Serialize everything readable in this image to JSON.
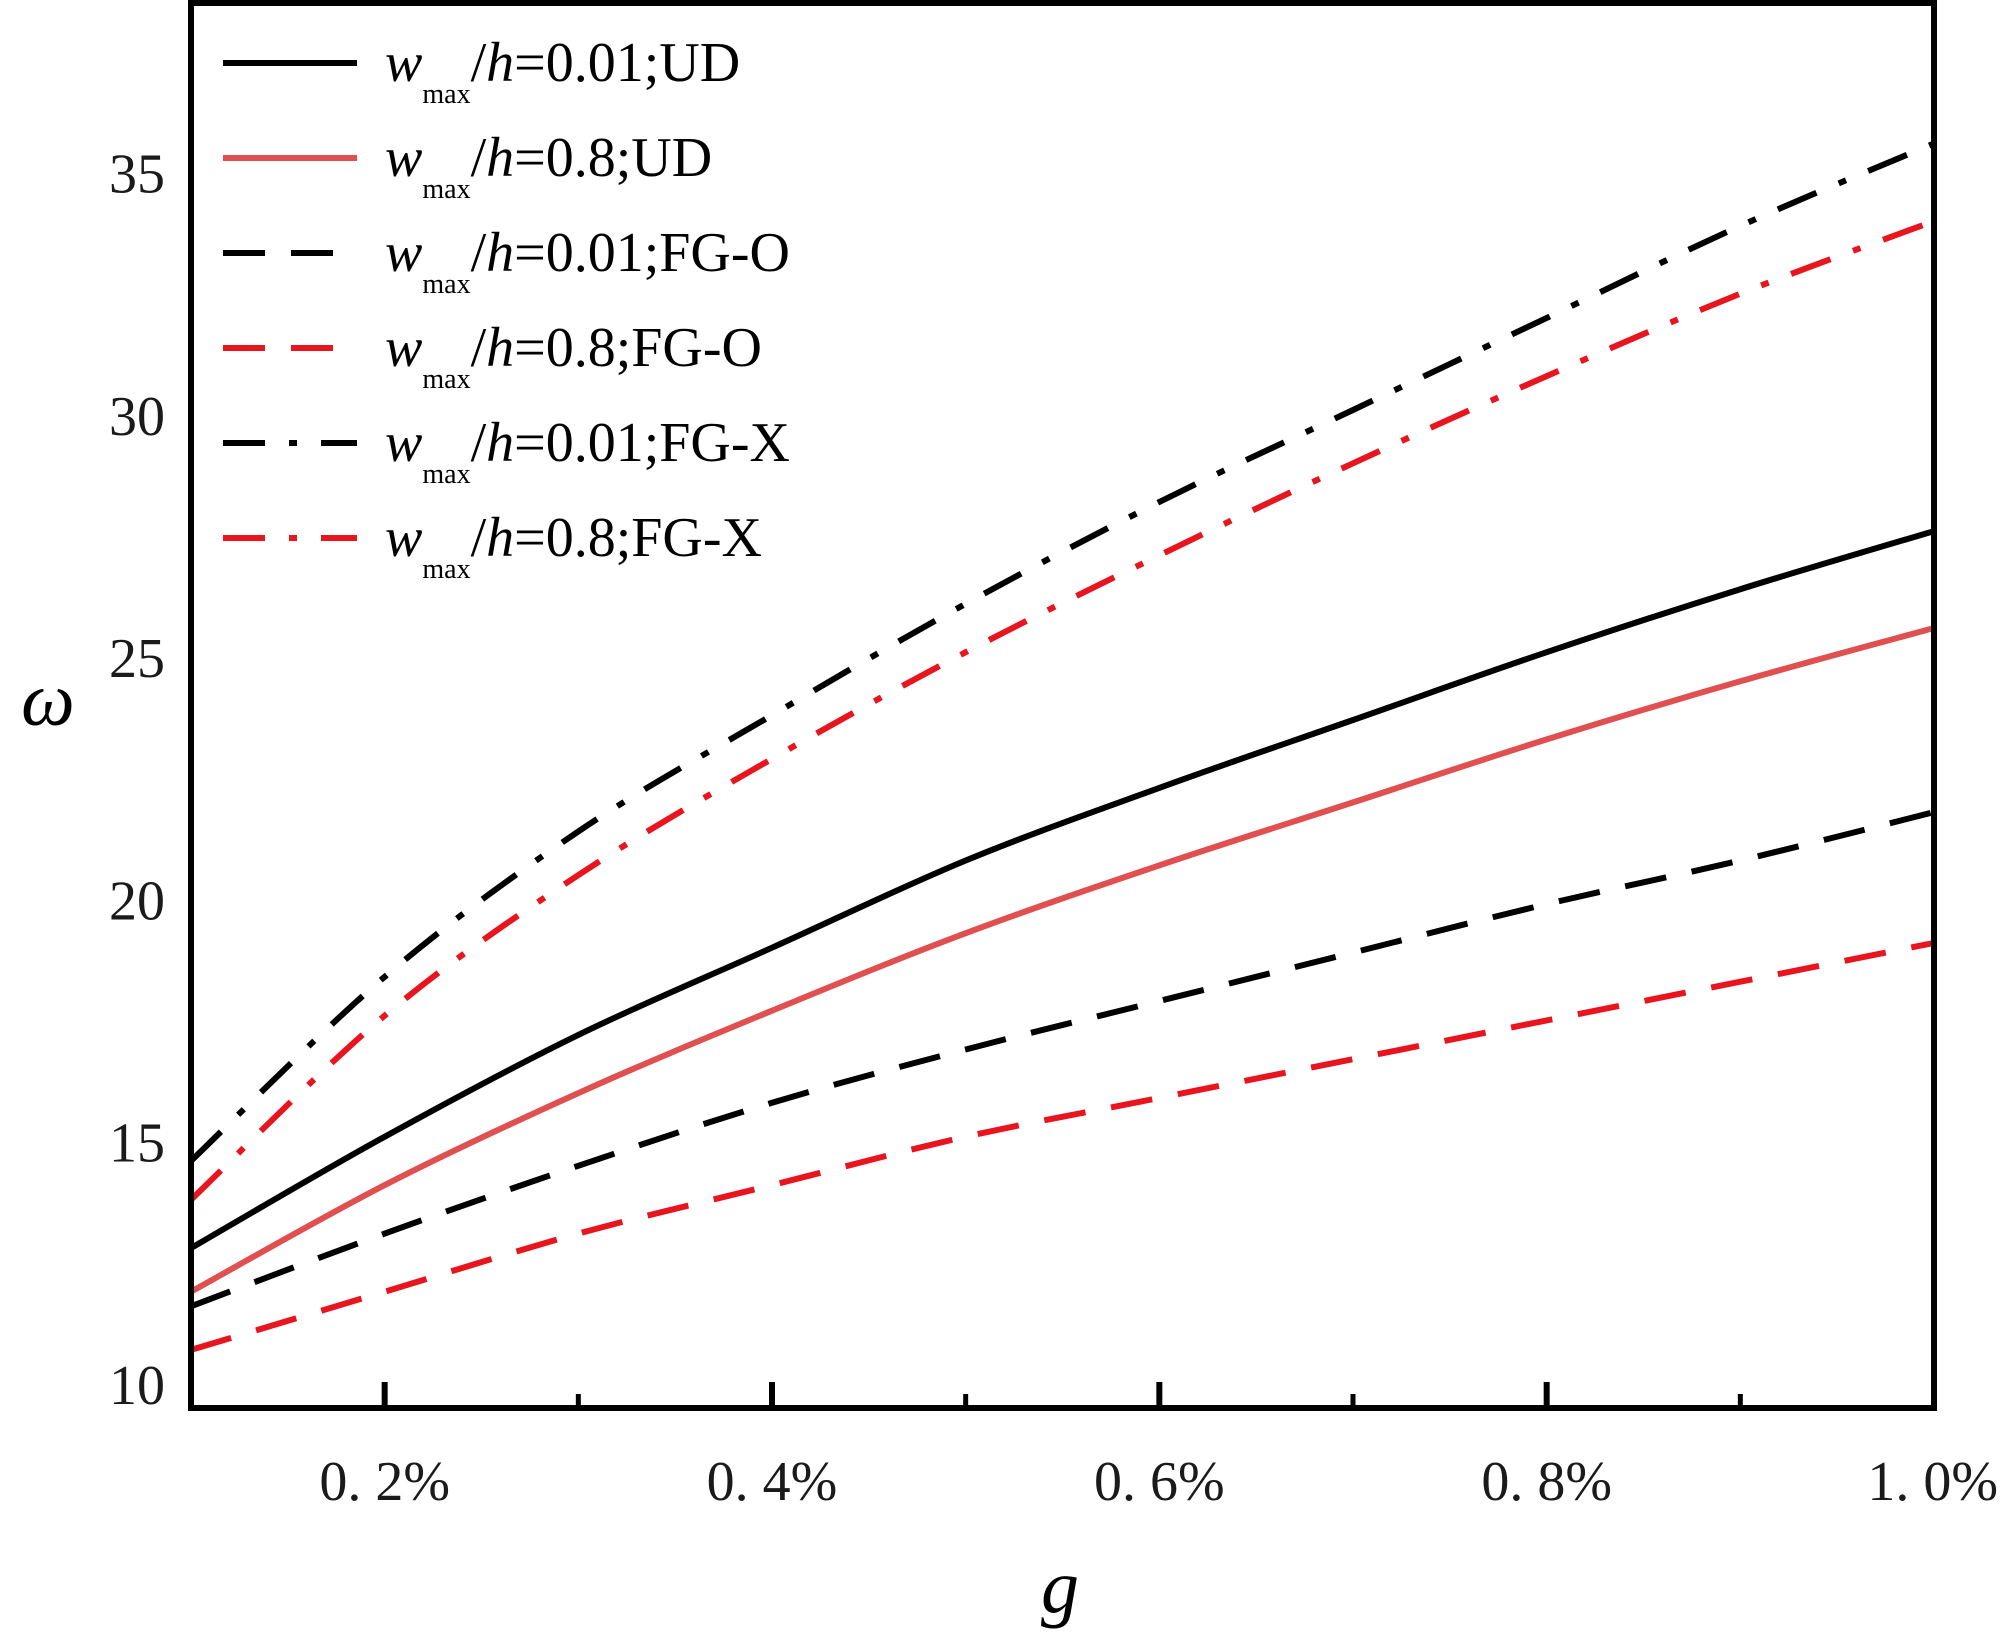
{
  "chart_data": {
    "type": "line",
    "title": "",
    "xlabel": "g",
    "ylabel": "ω",
    "xlim": [
      0.1,
      1.0
    ],
    "ylim": [
      9.5,
      38.5
    ],
    "xticks": [
      {
        "value": 0.2,
        "label": "0. 2%"
      },
      {
        "value": 0.4,
        "label": "0. 4%"
      },
      {
        "value": 0.6,
        "label": "0. 6%"
      },
      {
        "value": 0.8,
        "label": "0. 8%"
      },
      {
        "value": 1.0,
        "label": "1. 0%"
      }
    ],
    "xminor": [
      0.3,
      0.5,
      0.7,
      0.9
    ],
    "yticks": [
      {
        "value": 10,
        "label": "10"
      },
      {
        "value": 15,
        "label": "15"
      },
      {
        "value": 20,
        "label": "20"
      },
      {
        "value": 25,
        "label": "25"
      },
      {
        "value": 30,
        "label": "30"
      },
      {
        "value": 35,
        "label": "35"
      }
    ],
    "grid": false,
    "legend_position": "top-left",
    "x": [
      0.1,
      0.2,
      0.3,
      0.4,
      0.5,
      0.6,
      0.7,
      0.8,
      0.9,
      1.0
    ],
    "series": [
      {
        "name": "w_max/h=0.01;UD",
        "legend": {
          "w": "w",
          "sub": "max",
          "slash": "/",
          "h": "h",
          "rest": "=0.01;UD"
        },
        "values": [
          12.8,
          15.1,
          17.2,
          19.0,
          20.8,
          22.3,
          23.7,
          25.1,
          26.4,
          27.6
        ],
        "color": "#000000",
        "style": "solid"
      },
      {
        "name": "w_max/h=0.8;UD",
        "legend": {
          "w": "w",
          "sub": "max",
          "slash": "/",
          "h": "h",
          "rest": "=0.8;UD"
        },
        "values": [
          11.9,
          14.1,
          16.0,
          17.7,
          19.3,
          20.7,
          22.0,
          23.3,
          24.5,
          25.6
        ],
        "color": "#e05050",
        "style": "solid"
      },
      {
        "name": "w_max/h=0.01;FG-O",
        "legend": {
          "w": "w",
          "sub": "max",
          "slash": "/",
          "h": "h",
          "rest": "=0.01;FG-O"
        },
        "values": [
          11.6,
          13.1,
          14.5,
          15.8,
          16.9,
          17.9,
          18.9,
          19.9,
          20.8,
          21.8
        ],
        "color": "#000000",
        "style": "dashed"
      },
      {
        "name": "w_max/h=0.8;FG-O",
        "legend": {
          "w": "w",
          "sub": "max",
          "slash": "/",
          "h": "h",
          "rest": "=0.8;FG-O"
        },
        "values": [
          10.7,
          11.9,
          13.1,
          14.1,
          15.1,
          15.9,
          16.7,
          17.5,
          18.3,
          19.1
        ],
        "color": "#e8141e",
        "style": "dashed"
      },
      {
        "name": "w_max/h=0.01;FG-X",
        "legend": {
          "w": "w",
          "sub": "max",
          "slash": "/",
          "h": "h",
          "rest": "=0.01;FG-X"
        },
        "values": [
          14.6,
          18.4,
          21.4,
          23.8,
          26.1,
          28.2,
          30.1,
          32.0,
          33.9,
          35.6
        ],
        "color": "#000000",
        "style": "dashdot"
      },
      {
        "name": "w_max/h=0.8;FG-X",
        "legend": {
          "w": "w",
          "sub": "max",
          "slash": "/",
          "h": "h",
          "rest": "=0.8;FG-X"
        },
        "values": [
          13.8,
          17.6,
          20.5,
          22.9,
          25.1,
          27.1,
          29.0,
          30.8,
          32.5,
          34.0
        ],
        "color": "#e8141e",
        "style": "dashdot"
      }
    ]
  }
}
